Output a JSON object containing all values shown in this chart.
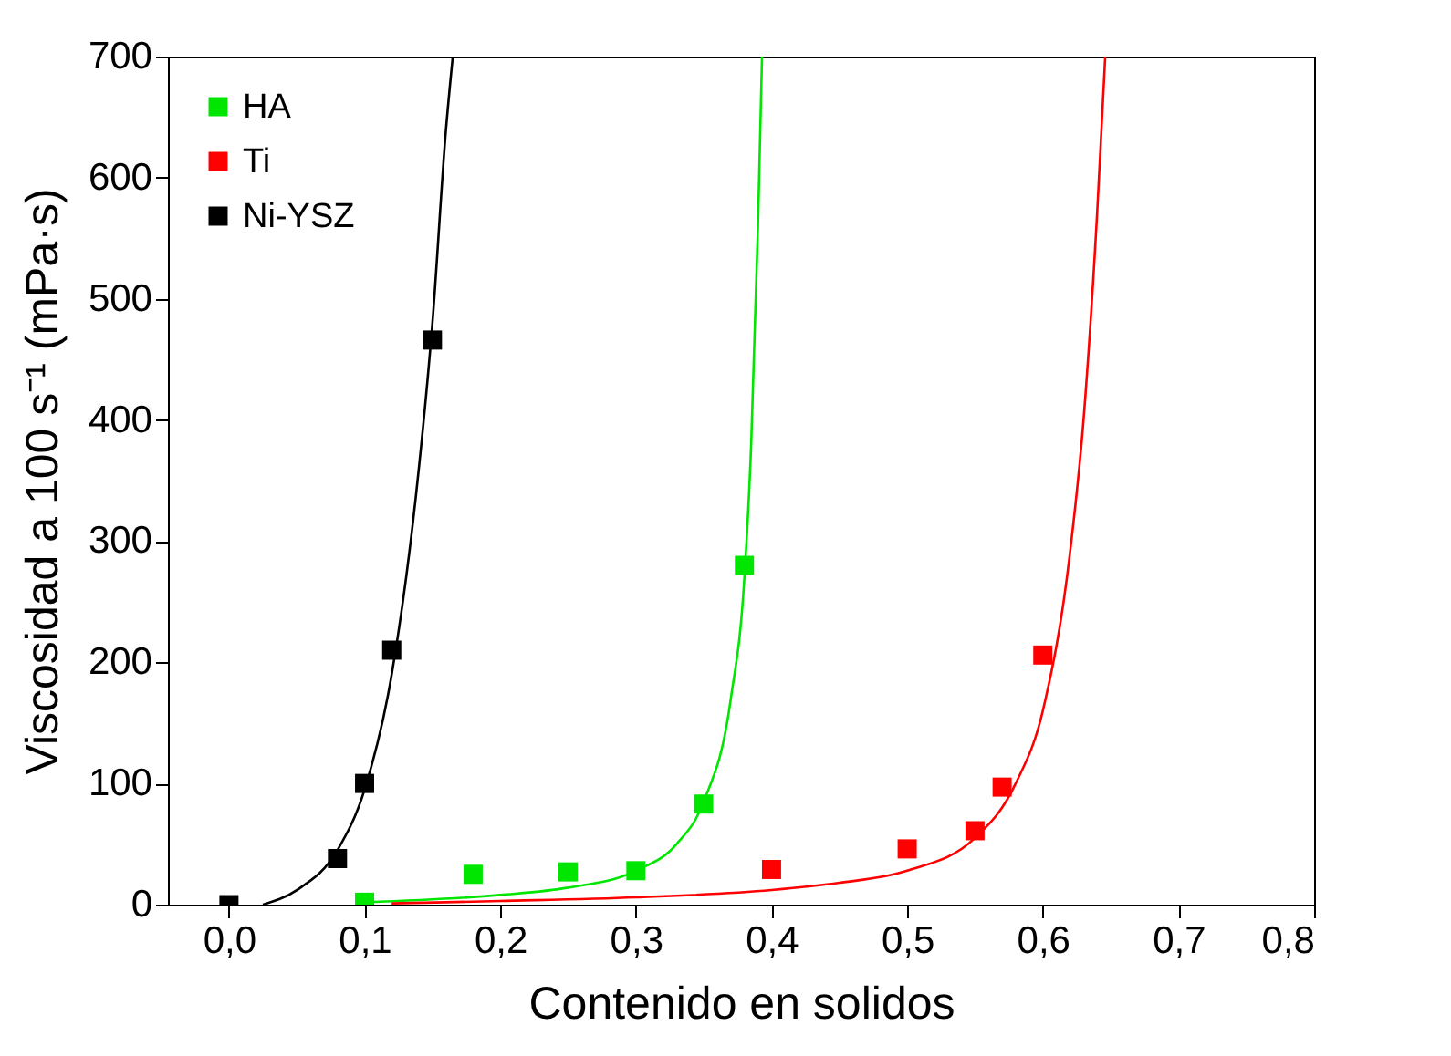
{
  "chart_data": {
    "type": "scatter",
    "xlabel": "Contenido en solidos",
    "ylabel": "Viscosidad a 100 s⁻¹ (mPa·s)",
    "xlim": [
      -0.045,
      0.8
    ],
    "ylim": [
      0,
      700
    ],
    "xticks": [
      {
        "value": 0,
        "label": "0,0"
      },
      {
        "value": 0.1,
        "label": "0,1"
      },
      {
        "value": 0.2,
        "label": "0,2"
      },
      {
        "value": 0.3,
        "label": "0,3"
      },
      {
        "value": 0.4,
        "label": "0,4"
      },
      {
        "value": 0.5,
        "label": "0,5"
      },
      {
        "value": 0.6,
        "label": "0,6"
      },
      {
        "value": 0.7,
        "label": "0,7"
      },
      {
        "value": 0.8,
        "label": "0,8"
      }
    ],
    "yticks": [
      0,
      100,
      200,
      300,
      400,
      500,
      600,
      700
    ],
    "grid": false,
    "legend": "top left",
    "marker": "square",
    "series": [
      {
        "name": "HA",
        "color": "#00e600",
        "x": [
          0.1,
          0.18,
          0.25,
          0.3,
          0.35,
          0.38
        ],
        "values": [
          2,
          25,
          27,
          28,
          83,
          280
        ]
      },
      {
        "name": "Ti",
        "color": "#ff0000",
        "x": [
          0.4,
          0.5,
          0.55,
          0.57,
          0.6
        ],
        "values": [
          29,
          46,
          61,
          97,
          206
        ]
      },
      {
        "name": "Ni-YSZ",
        "color": "#000000",
        "x": [
          0,
          0.08,
          0.1,
          0.12,
          0.15
        ],
        "values": [
          0,
          38,
          100,
          210,
          466
        ]
      },
      {
        "type": "line",
        "marker": "none",
        "color": "#00e600",
        "x": [
          0.1,
          0.2,
          0.25,
          0.3,
          0.33,
          0.35,
          0.37,
          0.38,
          0.385,
          0.39,
          0.393
        ],
        "values": [
          2,
          8,
          14,
          28,
          50,
          85,
          170,
          270,
          380,
          560,
          700
        ]
      },
      {
        "type": "line",
        "marker": "none",
        "color": "#ff0000",
        "x": [
          0.12,
          0.2,
          0.3,
          0.4,
          0.45,
          0.5,
          0.55,
          0.58,
          0.6,
          0.62,
          0.63,
          0.64,
          0.646
        ],
        "values": [
          1,
          3,
          6,
          12,
          18,
          28,
          55,
          100,
          160,
          290,
          400,
          570,
          700
        ]
      },
      {
        "type": "line",
        "marker": "none",
        "color": "#000000",
        "x": [
          0.025,
          0.05,
          0.08,
          0.1,
          0.12,
          0.14,
          0.15,
          0.16,
          0.165
        ],
        "values": [
          0,
          12,
          45,
          95,
          190,
          360,
          480,
          640,
          700
        ]
      }
    ]
  }
}
